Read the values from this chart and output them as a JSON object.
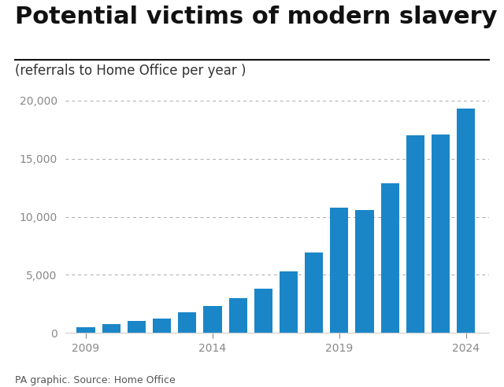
{
  "years": [
    2009,
    2010,
    2011,
    2012,
    2013,
    2014,
    2015,
    2016,
    2017,
    2018,
    2019,
    2020,
    2021,
    2022,
    2023,
    2024
  ],
  "values": [
    450,
    750,
    1000,
    1200,
    1750,
    2340,
    3000,
    3800,
    5300,
    6900,
    10800,
    10600,
    12900,
    17000,
    17100,
    19300
  ],
  "bar_color": "#1a86c8",
  "title": "Potential victims of modern slavery in UK",
  "subtitle": "(referrals to Home Office per year )",
  "footer": "PA graphic. Source: Home Office",
  "ylim": [
    0,
    21000
  ],
  "yticks": [
    0,
    5000,
    10000,
    15000,
    20000
  ],
  "ytick_labels": [
    "0",
    "5,000",
    "10,000",
    "15,000",
    "20,000"
  ],
  "xtick_positions": [
    2009,
    2014,
    2019,
    2024
  ],
  "background_color": "#ffffff",
  "title_fontsize": 22,
  "subtitle_fontsize": 12,
  "footer_fontsize": 9,
  "grid_color": "#aaaaaa",
  "bar_width": 0.72
}
